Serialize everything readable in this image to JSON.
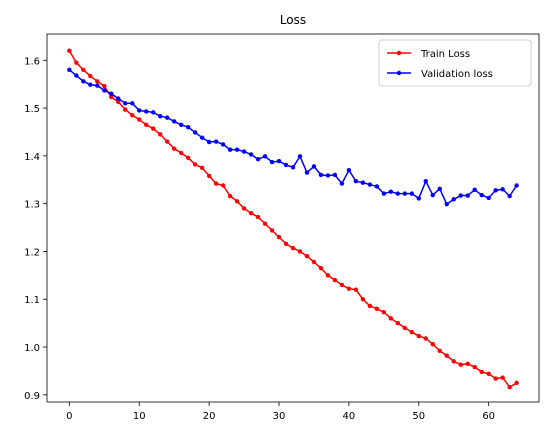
{
  "chart_data": {
    "type": "line",
    "title": "Loss",
    "xlabel": "",
    "ylabel": "",
    "xlim": [
      -3.2,
      67.2
    ],
    "ylim": [
      0.885,
      1.655
    ],
    "xticks": [
      0,
      10,
      20,
      30,
      40,
      50,
      60
    ],
    "yticks": [
      0.9,
      1.0,
      1.1,
      1.2,
      1.3,
      1.4,
      1.5,
      1.6
    ],
    "ytick_labels": [
      "0.9",
      "1.0",
      "1.1",
      "1.2",
      "1.3",
      "1.4",
      "1.5",
      "1.6"
    ],
    "grid": false,
    "legend_position": "top-right",
    "series": [
      {
        "name": "Train Loss",
        "color": "#ff0000",
        "marker": "dot",
        "x": [
          0,
          1,
          2,
          3,
          4,
          5,
          6,
          7,
          8,
          9,
          10,
          11,
          12,
          13,
          14,
          15,
          16,
          17,
          18,
          19,
          20,
          21,
          22,
          23,
          24,
          25,
          26,
          27,
          28,
          29,
          30,
          31,
          32,
          33,
          34,
          35,
          36,
          37,
          38,
          39,
          40,
          41,
          42,
          43,
          44,
          45,
          46,
          47,
          48,
          49,
          50,
          51,
          52,
          53,
          54,
          55,
          56,
          57,
          58,
          59,
          60,
          61,
          62,
          63,
          64
        ],
        "values": [
          1.62,
          1.595,
          1.58,
          1.567,
          1.556,
          1.546,
          1.523,
          1.513,
          1.497,
          1.485,
          1.476,
          1.465,
          1.457,
          1.445,
          1.43,
          1.415,
          1.406,
          1.396,
          1.382,
          1.375,
          1.358,
          1.342,
          1.338,
          1.316,
          1.305,
          1.29,
          1.28,
          1.272,
          1.258,
          1.244,
          1.23,
          1.216,
          1.207,
          1.2,
          1.19,
          1.178,
          1.165,
          1.15,
          1.14,
          1.13,
          1.122,
          1.12,
          1.1,
          1.086,
          1.08,
          1.073,
          1.06,
          1.05,
          1.04,
          1.031,
          1.023,
          1.018,
          1.006,
          0.992,
          0.982,
          0.97,
          0.963,
          0.965,
          0.958,
          0.948,
          0.944,
          0.934,
          0.936,
          0.916,
          0.925
        ]
      },
      {
        "name": "Validation loss",
        "color": "#0000ff",
        "marker": "dot",
        "x": [
          0,
          1,
          2,
          3,
          4,
          5,
          6,
          7,
          8,
          9,
          10,
          11,
          12,
          13,
          14,
          15,
          16,
          17,
          18,
          19,
          20,
          21,
          22,
          23,
          24,
          25,
          26,
          27,
          28,
          29,
          30,
          31,
          32,
          33,
          34,
          35,
          36,
          37,
          38,
          39,
          40,
          41,
          42,
          43,
          44,
          45,
          46,
          47,
          48,
          49,
          50,
          51,
          52,
          53,
          54,
          55,
          56,
          57,
          58,
          59,
          60,
          61,
          62,
          63,
          64
        ],
        "values": [
          1.58,
          1.568,
          1.556,
          1.549,
          1.547,
          1.537,
          1.53,
          1.52,
          1.51,
          1.51,
          1.495,
          1.493,
          1.491,
          1.483,
          1.48,
          1.472,
          1.465,
          1.46,
          1.449,
          1.438,
          1.429,
          1.43,
          1.424,
          1.413,
          1.413,
          1.409,
          1.403,
          1.393,
          1.399,
          1.387,
          1.389,
          1.381,
          1.376,
          1.399,
          1.365,
          1.378,
          1.36,
          1.359,
          1.36,
          1.342,
          1.37,
          1.347,
          1.344,
          1.34,
          1.336,
          1.321,
          1.325,
          1.321,
          1.321,
          1.321,
          1.311,
          1.347,
          1.318,
          1.331,
          1.299,
          1.309,
          1.317,
          1.317,
          1.329,
          1.318,
          1.312,
          1.328,
          1.33,
          1.316,
          1.338
        ]
      }
    ]
  }
}
